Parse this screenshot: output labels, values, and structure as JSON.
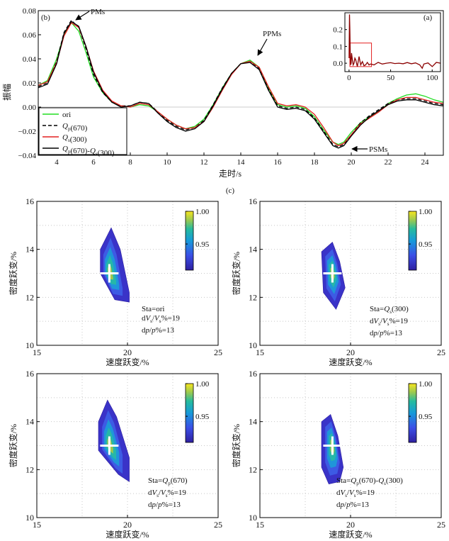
{
  "chart_data": [
    {
      "id": "b",
      "type": "line",
      "panel_label": "(b)",
      "xlabel": "走时/s",
      "ylabel": "振幅",
      "xlim": [
        3,
        25
      ],
      "ylim": [
        -0.04,
        0.08
      ],
      "xticks": [
        4,
        6,
        8,
        10,
        12,
        14,
        16,
        18,
        20,
        22,
        24
      ],
      "yticks": [
        -0.04,
        -0.02,
        0,
        0.02,
        0.04,
        0.06,
        0.08
      ],
      "ytick_labels": [
        "−0.04",
        "−0.02",
        "0.00",
        "0.02",
        "0.04",
        "0.06",
        "0.08"
      ],
      "annotations": [
        {
          "text": "PMs",
          "x": 4.7,
          "y": 0.072
        },
        {
          "text": "PPMs",
          "x": 14.6,
          "y": 0.039
        },
        {
          "text": "PSMs",
          "x": 19.4,
          "y": -0.034
        }
      ],
      "legend": {
        "placement": "bottom-left",
        "entries": [
          "ori",
          "Qp(670)",
          "Qs(300)",
          "Qp(670)-Qs(300)"
        ]
      },
      "series": [
        {
          "name": "ori",
          "color": "#22dd22",
          "dash": "",
          "x": [
            3,
            3.5,
            4,
            4.4,
            4.8,
            5.2,
            5.6,
            6,
            6.5,
            7,
            7.5,
            8,
            8.5,
            9,
            9.5,
            10,
            10.5,
            11,
            11.5,
            12,
            12.5,
            13,
            13.5,
            14,
            14.5,
            15,
            15.5,
            16,
            16.5,
            17,
            17.5,
            18,
            18.5,
            19,
            19.3,
            19.6,
            20,
            20.5,
            21,
            21.5,
            22,
            22.5,
            23,
            23.5,
            24,
            24.5,
            25
          ],
          "y": [
            0.018,
            0.022,
            0.04,
            0.06,
            0.07,
            0.063,
            0.045,
            0.025,
            0.012,
            0.004,
            0.001,
            0.0,
            0.002,
            0.001,
            -0.004,
            -0.01,
            -0.015,
            -0.018,
            -0.016,
            -0.01,
            0.002,
            0.016,
            0.028,
            0.036,
            0.039,
            0.033,
            0.016,
            0.002,
            0.0,
            0.001,
            -0.001,
            -0.008,
            -0.019,
            -0.029,
            -0.031,
            -0.029,
            -0.021,
            -0.013,
            -0.008,
            -0.004,
            0.003,
            0.007,
            0.01,
            0.011,
            0.009,
            0.006,
            0.004
          ]
        },
        {
          "name": "Qp(670)",
          "color": "#000000",
          "dash": "5,3",
          "x": [
            3,
            3.5,
            4,
            4.4,
            4.8,
            5.2,
            5.6,
            6,
            6.5,
            7,
            7.5,
            8,
            8.5,
            9,
            9.5,
            10,
            10.5,
            11,
            11.5,
            12,
            12.5,
            13,
            13.5,
            14,
            14.5,
            15,
            15.5,
            16,
            16.5,
            17,
            17.5,
            18,
            18.5,
            19,
            19.3,
            19.6,
            20,
            20.5,
            21,
            21.5,
            22,
            22.5,
            23,
            23.5,
            24,
            24.5,
            25
          ],
          "y": [
            0.017,
            0.02,
            0.038,
            0.062,
            0.072,
            0.066,
            0.048,
            0.027,
            0.012,
            0.004,
            0.001,
            0.001,
            0.004,
            0.003,
            -0.004,
            -0.011,
            -0.016,
            -0.019,
            -0.017,
            -0.011,
            0.002,
            0.016,
            0.028,
            0.036,
            0.038,
            0.032,
            0.015,
            0.001,
            -0.001,
            0.0,
            -0.002,
            -0.009,
            -0.02,
            -0.031,
            -0.033,
            -0.031,
            -0.023,
            -0.013,
            -0.007,
            -0.002,
            0.003,
            0.006,
            0.007,
            0.007,
            0.005,
            0.003,
            0.002
          ]
        },
        {
          "name": "Qs(300)",
          "color": "#e32020",
          "dash": "",
          "x": [
            3,
            3.5,
            4,
            4.4,
            4.8,
            5.2,
            5.6,
            6,
            6.5,
            7,
            7.5,
            8,
            8.5,
            9,
            9.5,
            10,
            10.5,
            11,
            11.5,
            12,
            12.5,
            13,
            13.5,
            14,
            14.5,
            15,
            15.5,
            16,
            16.5,
            17,
            17.5,
            18,
            18.5,
            19,
            19.3,
            19.6,
            20,
            20.5,
            21,
            21.5,
            22,
            22.5,
            23,
            23.5,
            24,
            24.5,
            25
          ],
          "y": [
            0.018,
            0.021,
            0.037,
            0.059,
            0.07,
            0.066,
            0.05,
            0.03,
            0.014,
            0.005,
            0.001,
            0.0,
            0.003,
            0.002,
            -0.004,
            -0.01,
            -0.015,
            -0.018,
            -0.017,
            -0.012,
            0.0,
            0.014,
            0.027,
            0.036,
            0.038,
            0.033,
            0.017,
            0.003,
            0.001,
            0.002,
            0.0,
            -0.006,
            -0.017,
            -0.029,
            -0.032,
            -0.03,
            -0.023,
            -0.014,
            -0.009,
            -0.004,
            0.002,
            0.006,
            0.008,
            0.008,
            0.006,
            0.004,
            0.003
          ]
        },
        {
          "name": "Qp(670)-Qs(300)",
          "color": "#000000",
          "dash": "",
          "x": [
            3,
            3.5,
            4,
            4.4,
            4.8,
            5.2,
            5.6,
            6,
            6.5,
            7,
            7.5,
            8,
            8.5,
            9,
            9.5,
            10,
            10.5,
            11,
            11.5,
            12,
            12.5,
            13,
            13.5,
            14,
            14.5,
            15,
            15.5,
            16,
            16.5,
            17,
            17.5,
            18,
            18.5,
            19,
            19.3,
            19.6,
            20,
            20.5,
            21,
            21.5,
            22,
            22.5,
            23,
            23.5,
            24,
            24.5,
            25
          ],
          "y": [
            0.016,
            0.019,
            0.036,
            0.061,
            0.071,
            0.067,
            0.05,
            0.029,
            0.013,
            0.004,
            0.0,
            0.001,
            0.004,
            0.003,
            -0.005,
            -0.012,
            -0.017,
            -0.02,
            -0.018,
            -0.012,
            0.001,
            0.015,
            0.028,
            0.036,
            0.037,
            0.031,
            0.014,
            0.0,
            -0.002,
            -0.001,
            -0.003,
            -0.01,
            -0.021,
            -0.032,
            -0.034,
            -0.032,
            -0.024,
            -0.015,
            -0.008,
            -0.003,
            0.002,
            0.005,
            0.006,
            0.006,
            0.004,
            0.002,
            0.001
          ]
        }
      ]
    },
    {
      "id": "a",
      "type": "line",
      "panel_label": "(a)",
      "xlim": [
        -5,
        110
      ],
      "ylim": [
        -0.05,
        0.3
      ],
      "xticks": [
        0,
        50,
        100
      ],
      "yticks": [
        0,
        0.1,
        0.2
      ],
      "ytick_labels": [
        "0.0",
        "0.1",
        "0.2"
      ],
      "highlight_box": {
        "x": [
          1,
          27
        ],
        "y": [
          -0.02,
          0.12
        ],
        "color": "#e32020"
      },
      "series": [
        {
          "name": "trace",
          "color": "#8b0000",
          "x": [
            0,
            0.5,
            1,
            1.5,
            2,
            2.5,
            3,
            4,
            5,
            6,
            7,
            8,
            9,
            10,
            12,
            14,
            16,
            18,
            20,
            22,
            24,
            26,
            30,
            35,
            40,
            45,
            50,
            55,
            60,
            65,
            70,
            75,
            80,
            85,
            88,
            90,
            95,
            100,
            105,
            110
          ],
          "y": [
            0.03,
            0.29,
            0.2,
            0.05,
            -0.01,
            0.0,
            0.06,
            0.02,
            -0.01,
            0.0,
            0.03,
            0.02,
            0.0,
            -0.02,
            0.04,
            -0.01,
            0.01,
            -0.015,
            -0.01,
            0.005,
            -0.01,
            -0.005,
            -0.01,
            0.005,
            -0.005,
            0.0,
            0.003,
            -0.002,
            0.0,
            -0.003,
            0.004,
            -0.003,
            0.002,
            -0.01,
            -0.03,
            -0.005,
            0.002,
            -0.02,
            0.005,
            0.0
          ]
        }
      ]
    },
    {
      "id": "c",
      "type": "heatmap",
      "panel_label": "(c)",
      "xlabel": "速度跃变/%",
      "ylabel": "密度跃变/%",
      "xlim": [
        15,
        25
      ],
      "ylim": [
        10,
        16
      ],
      "xticks": [
        15,
        20,
        25
      ],
      "yticks": [
        10,
        12,
        14,
        16
      ],
      "colorbar": {
        "min": 0.91,
        "max": 1.0,
        "ticks": [
          0.95,
          1.0
        ],
        "tick_labels": [
          "0.95",
          "1.00"
        ]
      },
      "true_model": {
        "x": 19,
        "y": 13
      },
      "panels": [
        {
          "sta": "ori",
          "text": "Sta=ori",
          "dvs": "19",
          "dp": "13",
          "outline": [
            [
              18.5,
              14.0
            ],
            [
              19.1,
              14.9
            ],
            [
              19.6,
              14.0
            ],
            [
              20.1,
              12.2
            ],
            [
              20.1,
              11.8
            ],
            [
              19.3,
              11.9
            ],
            [
              18.5,
              13.0
            ]
          ]
        },
        {
          "sta": "Qs(300)",
          "text": "Sta=Qs(300)",
          "dvs": "19",
          "dp": "13",
          "outline": [
            [
              18.4,
              13.9
            ],
            [
              19.0,
              14.3
            ],
            [
              19.4,
              13.5
            ],
            [
              19.7,
              12.4
            ],
            [
              19.2,
              11.5
            ],
            [
              18.5,
              12.2
            ]
          ]
        },
        {
          "sta": "Qp(670)",
          "text": "Sta=Qp(670)",
          "dvs": "19",
          "dp": "13",
          "outline": [
            [
              18.4,
              14.0
            ],
            [
              18.9,
              14.9
            ],
            [
              19.4,
              14.2
            ],
            [
              20.1,
              12.5
            ],
            [
              20.1,
              11.5
            ],
            [
              19.5,
              11.8
            ],
            [
              18.4,
              12.8
            ]
          ]
        },
        {
          "sta": "Qp(670)-Qs(300)",
          "text": "Sta=Qp(670)-Qs(300)",
          "dvs": "19",
          "dp": "13",
          "outline": [
            [
              18.4,
              14.0
            ],
            [
              18.9,
              14.3
            ],
            [
              19.3,
              13.4
            ],
            [
              19.6,
              12.1
            ],
            [
              19.4,
              11.5
            ],
            [
              18.8,
              11.4
            ],
            [
              18.4,
              12.1
            ]
          ]
        }
      ]
    }
  ]
}
